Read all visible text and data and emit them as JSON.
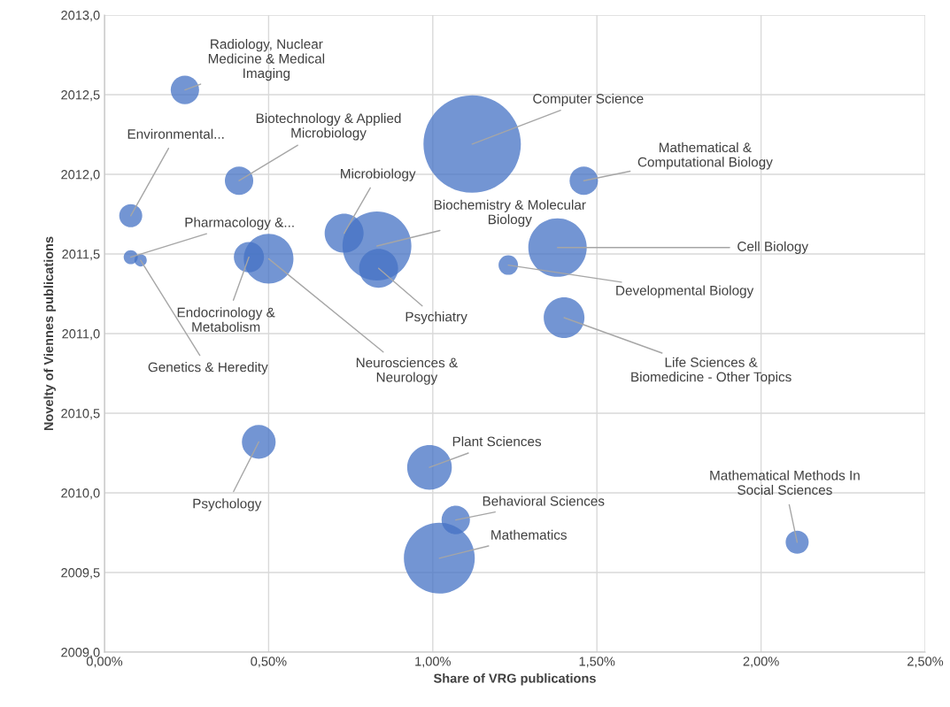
{
  "chart_data": {
    "type": "bubble",
    "xlabel": "Share of VRG publications",
    "ylabel": "Novelty of Viennes publications",
    "color": "#4472c4",
    "x": [
      0.245,
      0.08,
      0.41,
      0.73,
      0.08,
      0.44,
      0.11,
      0.5,
      0.83,
      0.835,
      1.12,
      1.46,
      1.38,
      1.23,
      1.4,
      0.47,
      0.99,
      1.07,
      1.02,
      2.11
    ],
    "values": [
      2012.53,
      2011.74,
      2011.96,
      2011.63,
      2011.48,
      2011.48,
      2011.46,
      2011.47,
      2011.55,
      2011.41,
      2012.19,
      2011.96,
      2011.54,
      2011.43,
      2011.1,
      2010.32,
      2010.16,
      2009.83,
      2009.59,
      2009.69
    ],
    "sizes": [
      0.085,
      0.056,
      0.085,
      0.16,
      0.021,
      0.096,
      0.016,
      0.26,
      0.5,
      0.16,
      1,
      0.085,
      0.36,
      0.04,
      0.175,
      0.12,
      0.21,
      0.085,
      0.53,
      0.056
    ],
    "annotations": [
      {
        "text": "Radiology, Nuclear\nMedicine & Medical\nImaging",
        "x": 0.245,
        "y": 2012.53
      },
      {
        "text": "Environmental...",
        "x": 0.08,
        "y": 2011.74
      },
      {
        "text": "Biotechnology & Applied\nMicrobiology",
        "x": 0.41,
        "y": 2011.96
      },
      {
        "text": "Microbiology",
        "x": 0.73,
        "y": 2011.63
      },
      {
        "text": "Pharmacology &...",
        "x": 0.08,
        "y": 2011.48
      },
      {
        "text": "Endocrinology &\nMetabolism",
        "x": 0.44,
        "y": 2011.48
      },
      {
        "text": "Genetics & Heredity",
        "x": 0.11,
        "y": 2011.46
      },
      {
        "text": "Neurosciences &\nNeurology",
        "x": 0.5,
        "y": 2011.47
      },
      {
        "text": "Biochemistry & Molecular\nBiology",
        "x": 0.83,
        "y": 2011.55
      },
      {
        "text": "Psychiatry",
        "x": 0.835,
        "y": 2011.41
      },
      {
        "text": "Computer Science",
        "x": 1.12,
        "y": 2012.19
      },
      {
        "text": "Mathematical &\nComputational Biology",
        "x": 1.46,
        "y": 2011.96
      },
      {
        "text": "Cell Biology",
        "x": 1.38,
        "y": 2011.54
      },
      {
        "text": "Developmental Biology",
        "x": 1.23,
        "y": 2011.43
      },
      {
        "text": "Life Sciences &\nBiomedicine - Other Topics",
        "x": 1.4,
        "y": 2011.1
      },
      {
        "text": "Psychology",
        "x": 0.47,
        "y": 2010.32
      },
      {
        "text": "Plant Sciences",
        "x": 0.99,
        "y": 2010.16
      },
      {
        "text": "Behavioral Sciences",
        "x": 1.07,
        "y": 2009.83
      },
      {
        "text": "Mathematics",
        "x": 1.02,
        "y": 2009.59
      },
      {
        "text": "Mathematical Methods In\nSocial Sciences",
        "x": 2.11,
        "y": 2009.69
      }
    ],
    "xlim": [
      0,
      2.5
    ],
    "xticks": [
      {
        "value": 0,
        "label": "0,00%"
      },
      {
        "value": 0.5,
        "label": "0,50%"
      },
      {
        "value": 1.0,
        "label": "1,00%"
      },
      {
        "value": 1.5,
        "label": "1,50%"
      },
      {
        "value": 2.0,
        "label": "2,00%"
      },
      {
        "value": 2.5,
        "label": "2,50%"
      }
    ],
    "ylim": [
      2009,
      2013
    ],
    "yticks": [
      {
        "value": 2009,
        "label": "2009,0"
      },
      {
        "value": 2009.5,
        "label": "2009,5"
      },
      {
        "value": 2010,
        "label": "2010,0"
      },
      {
        "value": 2010.5,
        "label": "2010,5"
      },
      {
        "value": 2011,
        "label": "2011,0"
      },
      {
        "value": 2011.5,
        "label": "2011,5"
      },
      {
        "value": 2012,
        "label": "2012,0"
      },
      {
        "value": 2012.5,
        "label": "2012,5"
      },
      {
        "value": 2013,
        "label": "2013,0"
      }
    ],
    "grid": true
  }
}
